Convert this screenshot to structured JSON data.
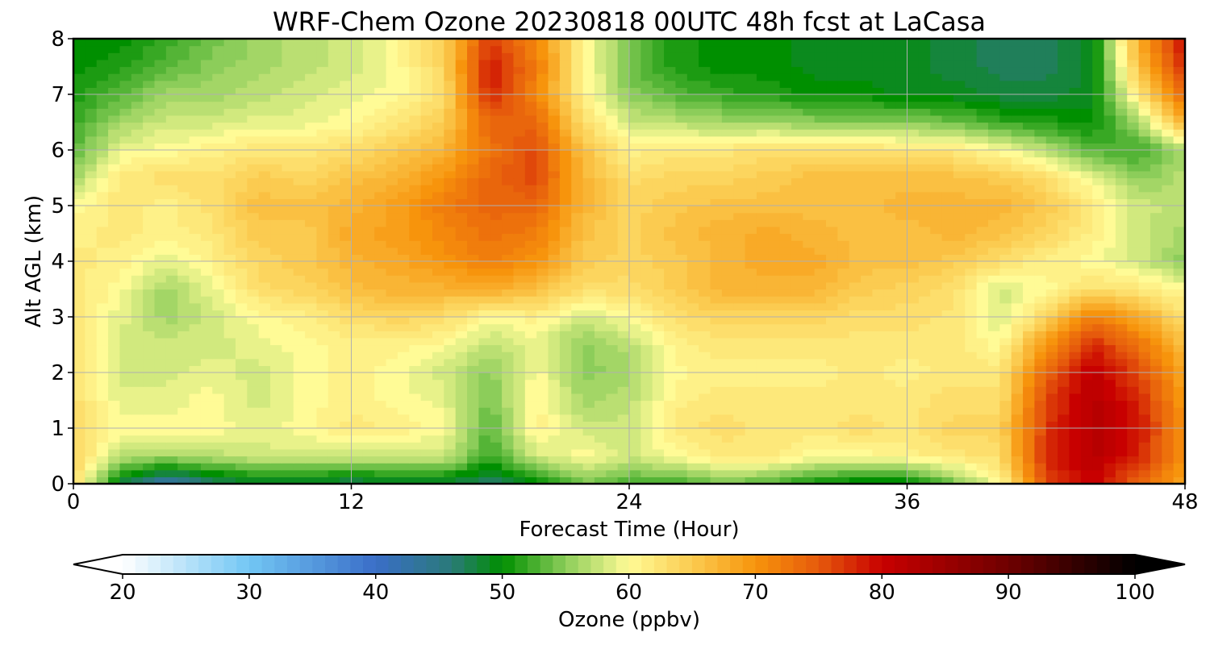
{
  "chart_data": {
    "type": "heatmap",
    "title": "WRF-Chem Ozone  20230818 00UTC 48h fcst at LaCasa",
    "xlabel": "Forecast Time (Hour)",
    "ylabel": "Alt AGL (km)",
    "xlim": [
      0,
      48
    ],
    "ylim": [
      0,
      8
    ],
    "xticks": [
      0,
      12,
      24,
      36,
      48
    ],
    "yticks": [
      0,
      1,
      2,
      3,
      4,
      5,
      6,
      7,
      8
    ],
    "grid": true,
    "x": [
      0,
      2,
      4,
      6,
      8,
      10,
      12,
      14,
      16,
      18,
      20,
      22,
      24,
      26,
      28,
      30,
      32,
      34,
      36,
      38,
      40,
      42,
      44,
      46,
      48
    ],
    "y": [
      0,
      0.5,
      1,
      1.5,
      2,
      2.5,
      3,
      3.5,
      4,
      4.5,
      5,
      5.5,
      6,
      6.5,
      7,
      7.5,
      8
    ],
    "z_units": "ppbv",
    "z": [
      [
        64,
        48,
        42,
        46,
        48,
        48,
        47,
        48,
        48,
        46,
        50,
        54,
        52,
        52,
        54,
        53,
        50,
        49,
        49,
        54,
        60,
        76,
        80,
        74,
        68
      ],
      [
        64,
        57,
        56,
        57,
        58,
        58,
        58,
        58,
        58,
        52,
        58,
        60,
        58,
        60,
        62,
        62,
        60,
        60,
        61,
        62,
        63,
        78,
        82,
        78,
        70
      ],
      [
        64,
        60,
        60,
        60,
        59,
        60,
        62,
        61,
        60,
        53,
        61,
        58,
        58,
        62,
        63,
        62,
        62,
        63,
        62,
        64,
        64,
        77,
        82,
        79,
        70
      ],
      [
        63,
        59,
        59,
        60,
        58,
        60,
        61,
        60,
        59,
        54,
        61,
        56,
        57,
        61,
        62,
        62,
        62,
        62,
        62,
        63,
        63,
        76,
        82,
        78,
        69
      ],
      [
        62,
        58,
        58,
        59,
        58,
        60,
        61,
        60,
        58,
        55,
        60,
        55,
        56,
        60,
        61,
        61,
        61,
        62,
        61,
        62,
        62,
        74,
        81,
        76,
        68
      ],
      [
        62,
        58,
        58,
        58,
        59,
        60,
        61,
        61,
        60,
        57,
        59,
        55,
        57,
        61,
        62,
        62,
        62,
        62,
        62,
        62,
        60,
        70,
        78,
        73,
        66
      ],
      [
        62,
        59,
        56,
        58,
        60,
        61,
        63,
        64,
        63,
        60,
        61,
        58,
        60,
        63,
        64,
        64,
        64,
        63,
        63,
        62,
        58,
        64,
        72,
        68,
        63
      ],
      [
        62,
        60,
        56,
        59,
        63,
        64,
        66,
        67,
        67,
        68,
        66,
        63,
        63,
        65,
        67,
        67,
        67,
        65,
        64,
        63,
        58,
        60,
        63,
        62,
        60
      ],
      [
        62,
        61,
        59,
        61,
        64,
        65,
        67,
        68,
        70,
        72,
        70,
        65,
        64,
        65,
        67,
        68,
        68,
        66,
        66,
        65,
        63,
        61,
        60,
        58,
        55
      ],
      [
        61,
        62,
        61,
        62,
        65,
        65,
        68,
        69,
        71,
        73,
        72,
        66,
        64,
        66,
        67,
        68,
        67,
        66,
        66,
        67,
        66,
        64,
        61,
        58,
        56
      ],
      [
        60,
        62,
        61,
        63,
        66,
        66,
        67,
        69,
        72,
        74,
        74,
        67,
        64,
        65,
        66,
        66,
        66,
        66,
        67,
        67,
        67,
        65,
        62,
        58,
        57
      ],
      [
        56,
        62,
        63,
        63,
        65,
        64,
        66,
        67,
        70,
        74,
        76,
        67,
        63,
        64,
        64,
        65,
        66,
        66,
        66,
        66,
        65,
        63,
        59,
        55,
        57
      ],
      [
        53,
        59,
        60,
        61,
        62,
        62,
        63,
        65,
        67,
        73,
        76,
        66,
        61,
        62,
        62,
        63,
        63,
        63,
        62,
        62,
        60,
        57,
        53,
        52,
        56
      ],
      [
        52,
        56,
        58,
        58,
        59,
        59,
        60,
        62,
        65,
        74,
        74,
        63,
        58,
        57,
        56,
        56,
        55,
        55,
        55,
        54,
        52,
        51,
        50,
        56,
        68
      ],
      [
        51,
        53,
        56,
        56,
        57,
        58,
        59,
        60,
        63,
        78,
        71,
        61,
        55,
        53,
        52,
        51,
        50,
        50,
        49,
        49,
        48,
        48,
        49,
        62,
        74
      ],
      [
        50,
        51,
        53,
        55,
        56,
        57,
        58,
        60,
        64,
        79,
        72,
        61,
        54,
        51,
        50,
        50,
        49,
        49,
        49,
        48,
        47,
        47,
        49,
        66,
        78
      ],
      [
        50,
        50,
        52,
        54,
        56,
        57,
        58,
        60,
        64,
        77,
        71,
        61,
        54,
        51,
        50,
        50,
        49,
        49,
        49,
        48,
        47,
        47,
        49,
        68,
        80
      ]
    ],
    "colorbar": {
      "label": "Ozone  (ppbv)",
      "min": 20,
      "max": 100,
      "ticks": [
        20,
        30,
        40,
        50,
        60,
        70,
        80,
        90,
        100
      ],
      "extend": "both",
      "colormap_stops": [
        {
          "value": 20,
          "color": "#ffffff"
        },
        {
          "value": 30,
          "color": "#72c6f4"
        },
        {
          "value": 40,
          "color": "#3a6ec8"
        },
        {
          "value": 46,
          "color": "#2a7a78"
        },
        {
          "value": 50,
          "color": "#008f00"
        },
        {
          "value": 55,
          "color": "#8ccd5a"
        },
        {
          "value": 60,
          "color": "#fffb96"
        },
        {
          "value": 65,
          "color": "#fbcb50"
        },
        {
          "value": 70,
          "color": "#f7940c"
        },
        {
          "value": 75,
          "color": "#e65a0c"
        },
        {
          "value": 80,
          "color": "#c80000"
        },
        {
          "value": 90,
          "color": "#6e0000"
        },
        {
          "value": 100,
          "color": "#000000"
        }
      ]
    }
  }
}
